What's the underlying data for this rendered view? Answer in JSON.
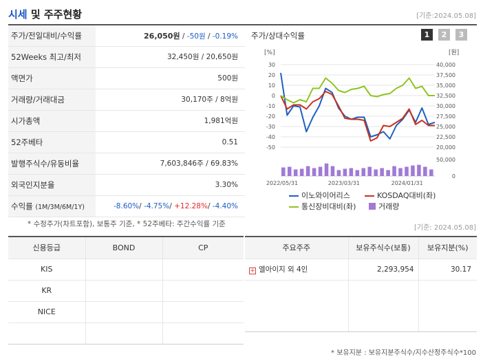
{
  "header": {
    "title_part1": "시세",
    "title_part2": " 및 주주현황",
    "base_date": "[기준:2024.05.08]"
  },
  "quote_table": {
    "rows": [
      {
        "label": "주가/전일대비/수익률",
        "price": "26,050원",
        "sep1": " / ",
        "change": "-50원",
        "sep2": " / ",
        "rate": "-0.19%"
      },
      {
        "label": "52Weeks 최고/최저",
        "value": "32,450원 / 20,650원"
      },
      {
        "label": "액면가",
        "value": "500원"
      },
      {
        "label": "거래량/거래대금",
        "value": "30,170주 / 8억원"
      },
      {
        "label": "시가총액",
        "value": "1,981억원"
      },
      {
        "label": "52주베타",
        "value": "0.51"
      },
      {
        "label": "발행주식수/유동비율",
        "value": "7,603,846주 / 69.83%"
      },
      {
        "label": "외국인지분율",
        "value": "3.30%"
      },
      {
        "label": "수익률",
        "label_sub": "(1M/3M/6M/1Y)",
        "r1": "-8.60%",
        "r2": "-4.75%",
        "r3": "+12.28%",
        "r4": "-4.40%"
      }
    ],
    "note": "* 수정주가(차트포함), 보통주 기준, * 52주베타: 주간수익률 기준"
  },
  "chart_panel": {
    "title": "주가/상대수익률",
    "tabs": [
      "1",
      "2",
      "3"
    ],
    "colors": {
      "tab_active": "#333333",
      "tab_inactive": "#bbbbbb"
    }
  },
  "chart_data": {
    "type": "line",
    "left_axis_label": "[%]",
    "right_axis_label": "[원]",
    "left_ticks": [
      "30",
      "20",
      "10",
      "0",
      "-10",
      "-20",
      "-30",
      "-40",
      "-50"
    ],
    "right_ticks": [
      "40,000",
      "37,500",
      "35,000",
      "32,500",
      "30,000",
      "27,500",
      "25,000",
      "22,500",
      "20,000"
    ],
    "volume_ticks": [
      "50,000",
      "0"
    ],
    "x_labels": [
      "2022/05/31",
      "2023/03/31",
      "2024/01/31"
    ],
    "ylim_left": [
      -50,
      30
    ],
    "series": [
      {
        "name": "이노와이어리스",
        "color": "#1f5fbf",
        "values": [
          22,
          -19,
          -10,
          -11,
          -35,
          -21,
          -10,
          7,
          3,
          -12,
          -20,
          -23,
          -21,
          -21,
          -40,
          -38,
          -35,
          -42,
          -29,
          -23,
          -14,
          -26,
          -12,
          -28,
          -26
        ]
      },
      {
        "name": "KOSDAQ대비(좌)",
        "color": "#c8321e",
        "values": [
          0,
          -13,
          -9,
          -9,
          -13,
          -6,
          -3,
          4,
          1,
          -10,
          -22,
          -23,
          -23,
          -24,
          -44,
          -41,
          -29,
          -30,
          -26,
          -22,
          -13,
          -28,
          -24,
          -29,
          -29
        ]
      },
      {
        "name": "통신장비대비(좌)",
        "color": "#8fc31f",
        "values": [
          0,
          -4,
          -7,
          -4,
          -6,
          7,
          7,
          17,
          12,
          5,
          3,
          6,
          7,
          9,
          0,
          -1,
          1,
          2,
          7,
          10,
          17,
          7,
          9,
          0,
          0
        ]
      }
    ],
    "volume": {
      "name": "거래량",
      "color": "#a07ad6",
      "values": [
        26,
        28,
        20,
        22,
        30,
        24,
        28,
        38,
        30,
        18,
        22,
        24,
        18,
        24,
        28,
        20,
        24,
        18,
        30,
        24,
        28,
        32,
        34,
        28,
        20
      ]
    }
  },
  "credit_table": {
    "headers": [
      "신용등급",
      "BOND",
      "CP"
    ],
    "rows": [
      {
        "agency": "KIS",
        "bond": "",
        "cp": ""
      },
      {
        "agency": "KR",
        "bond": "",
        "cp": ""
      },
      {
        "agency": "NICE",
        "bond": "",
        "cp": ""
      },
      {
        "agency": "",
        "bond": "",
        "cp": ""
      }
    ]
  },
  "holder_table": {
    "base_date": "[기준: 2024.05.08]",
    "headers": [
      "주요주주",
      "보유주식수(보통)",
      "보유지분(%)"
    ],
    "rows": [
      {
        "name": "엘아이지 외 4인",
        "shares": "2,293,954",
        "ratio": "30.17"
      }
    ],
    "expand_icon": "plus-square-icon",
    "note": "* 보유지분 : 보유지분주식수/지수산정주식수*100"
  }
}
